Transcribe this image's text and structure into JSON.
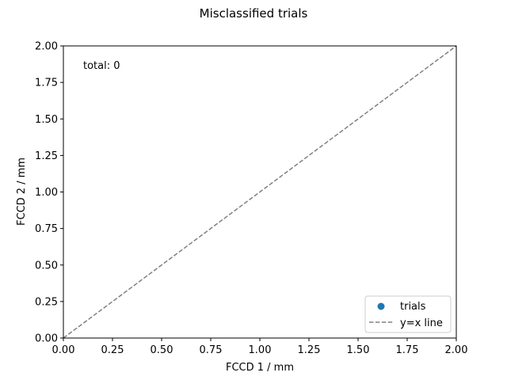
{
  "chart_data": {
    "type": "scatter",
    "title": "Misclassified trials",
    "xlabel": "FCCD 1 / mm",
    "ylabel": "FCCD 2 / mm",
    "xlim": [
      0.0,
      2.0
    ],
    "ylim": [
      0.0,
      2.0
    ],
    "xticks": [
      "0.00",
      "0.25",
      "0.50",
      "0.75",
      "1.00",
      "1.25",
      "1.50",
      "1.75",
      "2.00"
    ],
    "yticks": [
      "0.00",
      "0.25",
      "0.50",
      "0.75",
      "1.00",
      "1.25",
      "1.50",
      "1.75",
      "2.00"
    ],
    "grid": false,
    "annotation": "total: 0",
    "legend_position": "lower-right",
    "series": [
      {
        "name": "trials",
        "kind": "scatter",
        "color": "#1f77b4",
        "x": [],
        "y": []
      },
      {
        "name": "y=x line",
        "kind": "line",
        "style": "dashed",
        "color": "#808080",
        "x": [
          0.0,
          2.0
        ],
        "y": [
          0.0,
          2.0
        ]
      }
    ]
  }
}
